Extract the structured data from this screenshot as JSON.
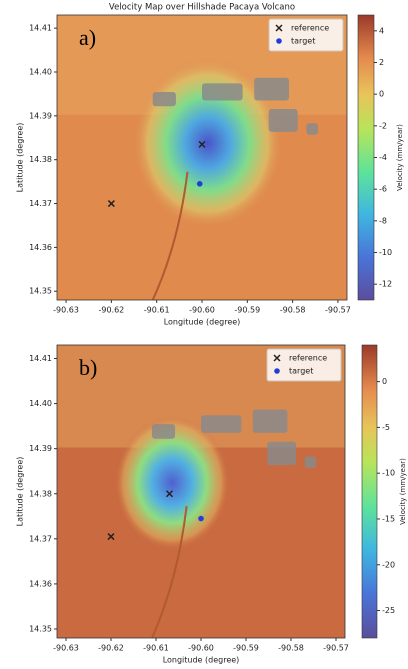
{
  "chart_data": [
    {
      "type": "scatter",
      "title": "Velocity Map over Hillshade Pacaya Volcano",
      "panel_label": "a)",
      "xlabel": "Longitude (degree)",
      "ylabel": "Latitude (degree)",
      "xlim": [
        -90.632,
        -90.568
      ],
      "xticks": [
        -90.63,
        -90.62,
        -90.61,
        {
          "value": -90.6,
          "label": "-90.60"
        },
        -90.59,
        -90.58,
        -90.57
      ],
      "ylim": [
        14.348,
        14.413
      ],
      "yticks": [
        14.35,
        14.36,
        14.37,
        14.38,
        14.39,
        {
          "value": 14.4,
          "label": "14.40"
        },
        14.41
      ],
      "legend": "upper right",
      "series": [
        {
          "name": "reference",
          "color": "#222222",
          "marker": "x",
          "x": [
            -90.62,
            -90.6
          ],
          "values": [
            14.37,
            14.3835
          ]
        },
        {
          "name": "target",
          "color": "#1f3fd6",
          "marker": "o",
          "x": [
            -90.6005
          ],
          "values": [
            14.3745
          ]
        }
      ],
      "colorbar": {
        "label": "Velocity (mm/year)",
        "lim": [
          -13,
          5
        ],
        "ticks": [
          -12,
          -10,
          -8,
          -6,
          -4,
          -2,
          0,
          2,
          4
        ]
      }
    },
    {
      "type": "scatter",
      "panel_label": "b)",
      "xlabel": "Longitude (degree)",
      "ylabel": "Latitude (degree)",
      "xlim": [
        -90.632,
        -90.568
      ],
      "xticks": [
        -90.63,
        -90.62,
        -90.61,
        {
          "value": -90.6,
          "label": "-90.60"
        },
        -90.59,
        -90.58,
        -90.57
      ],
      "ylim": [
        14.348,
        14.413
      ],
      "yticks": [
        14.35,
        14.36,
        14.37,
        14.38,
        14.39,
        {
          "value": 14.4,
          "label": "14.40"
        },
        14.41
      ],
      "legend": "upper right",
      "series": [
        {
          "name": "reference",
          "color": "#222222",
          "marker": "x",
          "x": [
            -90.62,
            -90.607
          ],
          "values": [
            14.3705,
            14.38
          ]
        },
        {
          "name": "target",
          "color": "#1f3fd6",
          "marker": "o",
          "x": [
            -90.6
          ],
          "values": [
            14.3745
          ]
        }
      ],
      "colorbar": {
        "label": "Velocity (mm/year)",
        "lim": [
          -28,
          4
        ],
        "ticks": [
          -25,
          -20,
          -15,
          -10,
          -5,
          0
        ]
      }
    }
  ]
}
